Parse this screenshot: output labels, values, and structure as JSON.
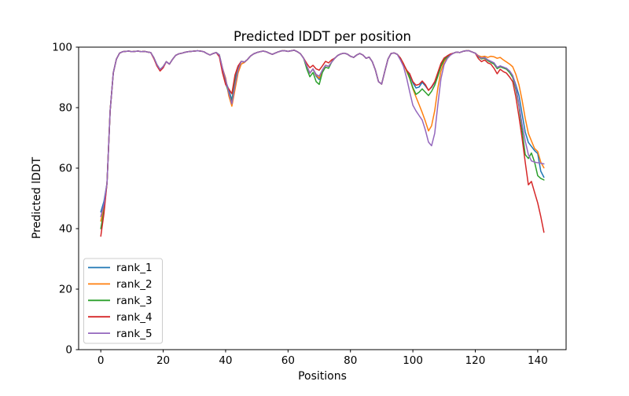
{
  "chart_data": {
    "type": "line",
    "title": "Predicted lDDT per position",
    "xlabel": "Positions",
    "ylabel": "Predicted lDDT",
    "xlim": [
      -7.1,
      149.1
    ],
    "ylim": [
      0,
      100
    ],
    "x_ticks": [
      0,
      20,
      40,
      60,
      80,
      100,
      120,
      140
    ],
    "y_ticks": [
      0,
      20,
      40,
      60,
      80,
      100
    ],
    "grid": false,
    "legend_position": "lower left",
    "x_start": 0,
    "x_step": 1,
    "n_points": 143,
    "series": [
      {
        "name": "rank_1",
        "color": "#1f77b4",
        "values": [
          45.5,
          49,
          55,
          79,
          91.5,
          96,
          98,
          98.5,
          98.6,
          98.7,
          98.5,
          98.6,
          98.7,
          98.5,
          98.6,
          98.4,
          98.2,
          96.5,
          94.2,
          92.6,
          93.6,
          95.2,
          94.4,
          96,
          97.3,
          97.8,
          98,
          98.3,
          98.5,
          98.6,
          98.7,
          98.8,
          98.7,
          98.5,
          97.9,
          97.4,
          97.9,
          98.2,
          97.4,
          93,
          88.8,
          86,
          82.5,
          89.5,
          93.2,
          95.3,
          95.1,
          95.9,
          97.1,
          97.8,
          98.2,
          98.5,
          98.7,
          98.5,
          98,
          97.6,
          98.1,
          98.5,
          98.8,
          98.8,
          98.6,
          98.8,
          99,
          98.5,
          97.8,
          96.3,
          93.8,
          91.4,
          92.8,
          90.4,
          89.3,
          92.4,
          94,
          93.6,
          95.1,
          96.4,
          97.3,
          97.8,
          98,
          97.7,
          97,
          96.6,
          97.4,
          97.9,
          97.4,
          96.3,
          96.7,
          95.2,
          92.4,
          88.6,
          87.8,
          92,
          96,
          97.9,
          98.1,
          97.6,
          96.4,
          94.4,
          92.4,
          90.8,
          88.2,
          86.5,
          86.8,
          88.4,
          87.2,
          85.8,
          86.7,
          88.3,
          91.2,
          94.2,
          96.2,
          97.1,
          97.7,
          98,
          98.4,
          98.2,
          98.6,
          98.8,
          98.8,
          98.4,
          98,
          97,
          96.3,
          96.6,
          95.8,
          95.3,
          94.8,
          93.3,
          93.8,
          93.4,
          93,
          92.1,
          90.6,
          87.5,
          84,
          78,
          72,
          68.5,
          67.2,
          65.8,
          64.8,
          59,
          57
        ]
      },
      {
        "name": "rank_2",
        "color": "#ff7f0e",
        "values": [
          42.5,
          47.5,
          55,
          79,
          91.5,
          96,
          98,
          98.5,
          98.6,
          98.7,
          98.5,
          98.6,
          98.7,
          98.5,
          98.6,
          98.4,
          98.2,
          96.5,
          93.8,
          92.2,
          93.6,
          95.2,
          94.4,
          96,
          97.3,
          97.8,
          98,
          98.3,
          98.5,
          98.6,
          98.7,
          98.8,
          98.7,
          98.5,
          97.9,
          97.4,
          97.9,
          98.2,
          97.4,
          93,
          89.8,
          84,
          80.5,
          86,
          91.5,
          94.4,
          94.9,
          95.9,
          97.1,
          97.8,
          98.2,
          98.5,
          98.7,
          98.5,
          98,
          97.6,
          98.1,
          98.5,
          98.8,
          98.8,
          98.6,
          98.8,
          99,
          98.5,
          97.8,
          96.3,
          93.8,
          91.4,
          92.8,
          90.8,
          89.7,
          92.4,
          94,
          93.6,
          95.1,
          96.4,
          97.3,
          97.8,
          98,
          97.7,
          97,
          96.6,
          97.4,
          97.9,
          97.4,
          96.3,
          96.7,
          95.2,
          92.4,
          88.6,
          87.8,
          92,
          96,
          97.9,
          98.1,
          97.6,
          96.4,
          94.6,
          92,
          89.6,
          86.3,
          83.5,
          81,
          78.4,
          75.5,
          72.3,
          74,
          79,
          86.5,
          92,
          95.2,
          96.6,
          97.5,
          98,
          98.4,
          98.2,
          98.6,
          98.8,
          98.8,
          98.4,
          98,
          97.2,
          96.8,
          97,
          96.6,
          97,
          96.8,
          96.3,
          96.6,
          95.8,
          95.1,
          94.4,
          93.5,
          91,
          87.5,
          82.5,
          76.5,
          71.5,
          69,
          66.5,
          65.5,
          62,
          60.1
        ]
      },
      {
        "name": "rank_3",
        "color": "#2ca02c",
        "values": [
          40,
          46,
          55,
          79,
          91.5,
          96,
          98,
          98.5,
          98.6,
          98.7,
          98.5,
          98.6,
          98.7,
          98.5,
          98.6,
          98.4,
          98.2,
          96.5,
          94.2,
          92.6,
          93.6,
          95.2,
          94.4,
          96,
          97.3,
          97.8,
          98,
          98.3,
          98.5,
          98.6,
          98.7,
          98.8,
          98.7,
          98.5,
          97.9,
          97.4,
          97.9,
          98.2,
          97.4,
          92.6,
          88,
          85,
          82,
          88.5,
          92.8,
          95.3,
          95.1,
          95.9,
          97.1,
          97.8,
          98.2,
          98.5,
          98.7,
          98.5,
          98,
          97.6,
          98.1,
          98.5,
          98.8,
          98.8,
          98.6,
          98.8,
          99,
          98.5,
          97.8,
          96.3,
          92.8,
          90.2,
          91.6,
          88.6,
          87.7,
          91.6,
          93.4,
          93,
          95.1,
          96.4,
          97.3,
          97.8,
          98,
          97.7,
          97,
          96.6,
          97.4,
          97.9,
          97.4,
          96.3,
          96.7,
          95.2,
          92.4,
          88.6,
          87.8,
          92,
          96,
          97.9,
          98.1,
          97.6,
          96.4,
          94.4,
          92.4,
          89.8,
          86.6,
          84.4,
          85.1,
          86.2,
          85.1,
          84,
          85.4,
          87.4,
          90.4,
          93.6,
          95.8,
          96.8,
          97.5,
          98,
          98.4,
          98.2,
          98.6,
          98.8,
          98.8,
          98.4,
          98,
          96.8,
          96.1,
          96.4,
          95.5,
          95,
          94.4,
          92.9,
          93.5,
          93.1,
          92.7,
          91.6,
          90,
          86,
          80.5,
          72.5,
          64.5,
          63.2,
          65,
          62,
          57.5,
          56.6,
          56.1
        ]
      },
      {
        "name": "rank_4",
        "color": "#d62728",
        "values": [
          37.5,
          45,
          55,
          79,
          91.5,
          96,
          98,
          98.5,
          98.6,
          98.7,
          98.5,
          98.6,
          98.7,
          98.5,
          98.6,
          98.4,
          98.2,
          96.2,
          93.8,
          92.1,
          93.2,
          95.2,
          94.4,
          96,
          97.3,
          97.8,
          98,
          98.3,
          98.5,
          98.6,
          98.7,
          98.8,
          98.7,
          98.5,
          97.9,
          97.4,
          97.9,
          98.2,
          96.8,
          91.5,
          87.6,
          86.2,
          84.6,
          90.8,
          93.8,
          95.3,
          95.1,
          95.9,
          97.1,
          97.8,
          98.2,
          98.5,
          98.7,
          98.5,
          98,
          97.6,
          98.1,
          98.5,
          98.8,
          98.8,
          98.6,
          98.8,
          99,
          98.5,
          97.8,
          96.3,
          94.6,
          93.2,
          94,
          92.8,
          92.4,
          93.8,
          95.3,
          94.8,
          95.8,
          96.4,
          97.3,
          97.8,
          98,
          97.7,
          97,
          96.6,
          97.4,
          97.9,
          97.4,
          96.3,
          96.7,
          95.2,
          92.4,
          88.6,
          87.8,
          92,
          96,
          97.9,
          98.1,
          97.6,
          96.4,
          94.4,
          92.4,
          91.2,
          88.6,
          87.4,
          87.7,
          88.8,
          87.6,
          85.7,
          86.9,
          88.6,
          91.6,
          94.6,
          96.4,
          97.1,
          97.7,
          98,
          98.4,
          98.2,
          98.6,
          98.8,
          98.8,
          98.4,
          98,
          96.2,
          95.2,
          95.8,
          94.8,
          94.4,
          93,
          91.2,
          92.7,
          91.9,
          91.4,
          90.1,
          88.6,
          83.5,
          77,
          70,
          62,
          54.5,
          55.6,
          52,
          48.5,
          44,
          38.8
        ]
      },
      {
        "name": "rank_5",
        "color": "#9467bd",
        "values": [
          44,
          48,
          55,
          79,
          91.5,
          96,
          98,
          98.5,
          98.6,
          98.7,
          98.5,
          98.6,
          98.7,
          98.5,
          98.6,
          98.4,
          98.2,
          96.5,
          94.2,
          92.6,
          93.6,
          95.2,
          94.4,
          96,
          97.3,
          97.8,
          98,
          98.3,
          98.5,
          98.6,
          98.7,
          98.8,
          98.7,
          98.5,
          97.9,
          97.4,
          97.9,
          98.2,
          97.4,
          93,
          89.3,
          85,
          81.3,
          87.5,
          92.5,
          95.3,
          95.1,
          95.9,
          97.1,
          97.8,
          98.2,
          98.5,
          98.7,
          98.5,
          98,
          97.6,
          98.1,
          98.5,
          98.8,
          98.8,
          98.6,
          98.8,
          99,
          98.5,
          97.8,
          96.3,
          93.8,
          91.4,
          92.8,
          91,
          90.4,
          92.4,
          94,
          93.6,
          95.1,
          96.4,
          97.3,
          97.8,
          98,
          97.7,
          97,
          96.6,
          97.4,
          97.9,
          97.4,
          96.3,
          96.7,
          95.2,
          92.4,
          88.6,
          87.8,
          92,
          96,
          97.9,
          98.1,
          97.6,
          95.8,
          93.6,
          89.8,
          85.2,
          80.8,
          78.9,
          77.4,
          75.9,
          72.6,
          68.6,
          67.4,
          71.5,
          81,
          89.5,
          94.2,
          96.2,
          97.3,
          98,
          98.4,
          98.2,
          98.6,
          98.8,
          98.8,
          98.4,
          98,
          97,
          96.3,
          96.6,
          95.8,
          95.3,
          94.8,
          93.3,
          93.8,
          93.4,
          93,
          92.1,
          90.6,
          86.8,
          81,
          74.5,
          69,
          64.5,
          62.4,
          62,
          61.8,
          61.6,
          61.4
        ]
      }
    ]
  }
}
